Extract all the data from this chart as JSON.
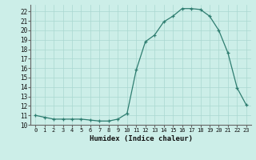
{
  "x": [
    0,
    1,
    2,
    3,
    4,
    5,
    6,
    7,
    8,
    9,
    10,
    11,
    12,
    13,
    14,
    15,
    16,
    17,
    18,
    19,
    20,
    21,
    22,
    23
  ],
  "y": [
    11.0,
    10.8,
    10.6,
    10.6,
    10.6,
    10.6,
    10.5,
    10.4,
    10.4,
    10.6,
    11.2,
    15.8,
    18.8,
    19.5,
    20.9,
    21.5,
    22.3,
    22.3,
    22.2,
    21.5,
    20.0,
    17.6,
    13.9,
    12.1
  ],
  "xlabel": "Humidex (Indice chaleur)",
  "bg_color": "#cceee8",
  "line_color": "#2e7d70",
  "grid_color": "#aad8d0",
  "xlim": [
    -0.5,
    23.5
  ],
  "ylim": [
    10.0,
    22.7
  ],
  "yticks": [
    10,
    11,
    12,
    13,
    14,
    15,
    16,
    17,
    18,
    19,
    20,
    21,
    22
  ],
  "xticks": [
    0,
    1,
    2,
    3,
    4,
    5,
    6,
    7,
    8,
    9,
    10,
    11,
    12,
    13,
    14,
    15,
    16,
    17,
    18,
    19,
    20,
    21,
    22,
    23
  ]
}
